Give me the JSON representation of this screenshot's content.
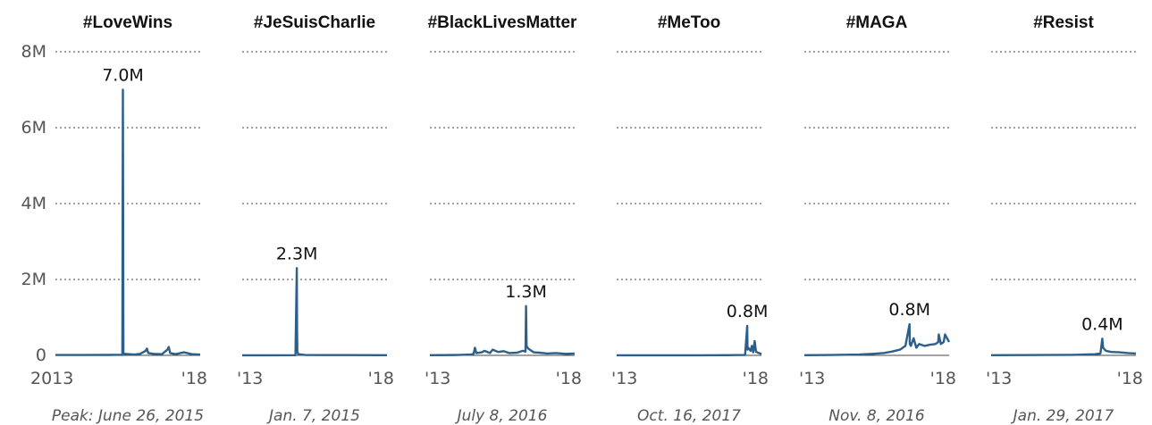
{
  "colors": {
    "series": "#2c5f8a",
    "grid": "#444444",
    "text": "#111111",
    "axis_text": "#555555"
  },
  "chart_data": [
    {
      "type": "line",
      "title": "#LoveWins",
      "peak_label": "7.0M",
      "caption": "Peak: June 26, 2015",
      "xticks": [
        "2013",
        "'18"
      ],
      "ylim": [
        0,
        8000000
      ],
      "yticks": [
        "0",
        "2M",
        "4M",
        "6M",
        "8M"
      ],
      "grid": true,
      "series": [
        {
          "x": [
            2013.0,
            2014.0,
            2015.0,
            2015.45,
            2015.47,
            2015.49,
            2015.5,
            2015.55,
            2015.7,
            2015.9,
            2016.1,
            2016.3,
            2016.35,
            2016.4,
            2016.6,
            2016.9,
            2017.1,
            2017.15,
            2017.2,
            2017.4,
            2017.7,
            2018.0,
            2018.3
          ],
          "y": [
            10000,
            10000,
            12000,
            15000,
            7000000,
            60000,
            20000,
            40000,
            30000,
            20000,
            40000,
            120000,
            180000,
            60000,
            40000,
            30000,
            150000,
            220000,
            60000,
            30000,
            80000,
            30000,
            20000
          ]
        }
      ]
    },
    {
      "type": "line",
      "title": "#JeSuisCharlie",
      "peak_label": "2.3M",
      "caption": "Jan. 7, 2015",
      "xticks": [
        "'13",
        "'18"
      ],
      "ylim": [
        0,
        8000000
      ],
      "grid": true,
      "series": [
        {
          "x": [
            2013.0,
            2014.0,
            2014.95,
            2015.0,
            2015.01,
            2015.02,
            2015.05,
            2015.3,
            2016.0,
            2017.0,
            2018.0,
            2018.3
          ],
          "y": [
            3000,
            3000,
            5000,
            2300000,
            700000,
            100000,
            30000,
            10000,
            8000,
            6000,
            5000,
            5000
          ]
        }
      ]
    },
    {
      "type": "line",
      "title": "#BlackLivesMatter",
      "peak_label": "1.3M",
      "caption": "July 8, 2016",
      "xticks": [
        "'13",
        "'18"
      ],
      "ylim": [
        0,
        8000000
      ],
      "grid": true,
      "series": [
        {
          "x": [
            2013.0,
            2014.0,
            2014.5,
            2014.6,
            2014.65,
            2014.7,
            2014.9,
            2015.0,
            2015.2,
            2015.3,
            2015.5,
            2015.7,
            2015.9,
            2016.2,
            2016.4,
            2016.5,
            2016.52,
            2016.54,
            2016.6,
            2016.8,
            2017.0,
            2017.3,
            2017.6,
            2018.0,
            2018.3
          ],
          "y": [
            5000,
            10000,
            20000,
            40000,
            200000,
            60000,
            80000,
            120000,
            60000,
            150000,
            90000,
            110000,
            60000,
            70000,
            120000,
            100000,
            1300000,
            250000,
            180000,
            80000,
            70000,
            50000,
            60000,
            40000,
            50000
          ]
        }
      ]
    },
    {
      "type": "line",
      "title": "#MeToo",
      "peak_label": "0.8M",
      "caption": "Oct. 16, 2017",
      "xticks": [
        "'13",
        "'18"
      ],
      "ylim": [
        0,
        8000000
      ],
      "grid": true,
      "series": [
        {
          "x": [
            2013.0,
            2014.0,
            2015.0,
            2016.0,
            2017.0,
            2017.7,
            2017.78,
            2017.79,
            2017.82,
            2017.9,
            2017.95,
            2018.0,
            2018.05,
            2018.1,
            2018.2,
            2018.3
          ],
          "y": [
            2000,
            2000,
            3000,
            3000,
            5000,
            10000,
            780000,
            150000,
            200000,
            120000,
            250000,
            80000,
            380000,
            100000,
            60000,
            40000
          ]
        }
      ]
    },
    {
      "type": "line",
      "title": "#MAGA",
      "peak_label": "0.8M",
      "caption": "Nov. 8, 2016",
      "xticks": [
        "'13",
        "'18"
      ],
      "ylim": [
        0,
        8000000
      ],
      "grid": true,
      "series": [
        {
          "x": [
            2013.0,
            2014.0,
            2015.0,
            2015.5,
            2015.9,
            2016.2,
            2016.5,
            2016.7,
            2016.85,
            2016.86,
            2016.9,
            2017.0,
            2017.1,
            2017.2,
            2017.4,
            2017.6,
            2017.8,
            2017.9,
            2017.92,
            2018.0,
            2018.1,
            2018.15,
            2018.3
          ],
          "y": [
            5000,
            10000,
            20000,
            40000,
            60000,
            100000,
            150000,
            250000,
            820000,
            300000,
            250000,
            450000,
            200000,
            300000,
            250000,
            280000,
            300000,
            350000,
            550000,
            300000,
            350000,
            550000,
            350000
          ]
        }
      ]
    },
    {
      "type": "line",
      "title": "#Resist",
      "peak_label": "0.4M",
      "caption": "Jan. 29, 2017",
      "xticks": [
        "'13",
        "'18"
      ],
      "ylim": [
        0,
        8000000
      ],
      "grid": true,
      "series": [
        {
          "x": [
            2013.0,
            2014.0,
            2015.0,
            2016.0,
            2016.8,
            2017.0,
            2017.07,
            2017.1,
            2017.2,
            2017.4,
            2017.7,
            2018.0,
            2018.3
          ],
          "y": [
            5000,
            8000,
            10000,
            15000,
            30000,
            50000,
            440000,
            200000,
            120000,
            90000,
            80000,
            60000,
            50000
          ]
        }
      ]
    }
  ]
}
